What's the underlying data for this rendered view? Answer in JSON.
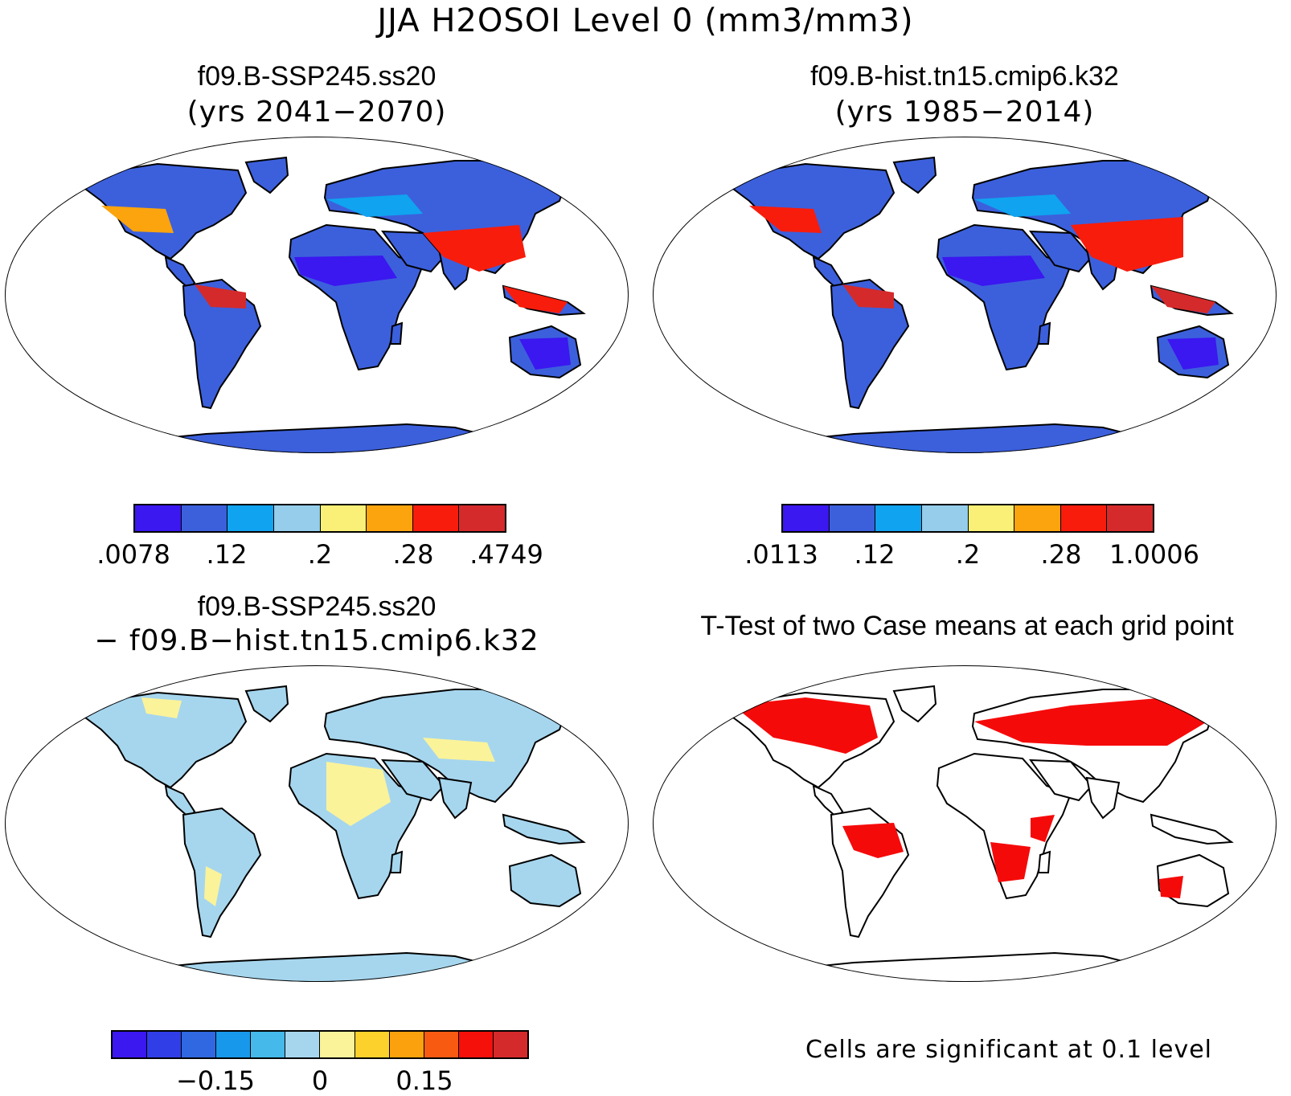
{
  "title": "JJA H2OSOI Level 0 (mm3/mm3)",
  "panels": {
    "a": {
      "case": "f09.B-SSP245.ss20",
      "years": "(yrs 2041−2070)"
    },
    "b": {
      "case": "f09.B-hist.tn15.cmip6.k32",
      "years": "(yrs 1985−2014)"
    },
    "c": {
      "case": "f09.B-SSP245.ss20",
      "minus": "− f09.B−hist.tn15.cmip6.k32"
    },
    "d": {
      "title": "T-Test of two Case means at each grid point",
      "note": "Cells are significant at 0.1 level"
    }
  },
  "colorbars": {
    "a": {
      "colors": [
        "#3b17f0",
        "#3c60dc",
        "#10a3f0",
        "#95cdea",
        "#faf077",
        "#fba40d",
        "#f81c0c",
        "#d42a2b"
      ],
      "labels": [
        ".0078",
        ".12",
        ".2",
        ".28",
        ".4749"
      ]
    },
    "b": {
      "colors": [
        "#3b17f0",
        "#3c60dc",
        "#10a3f0",
        "#95cdea",
        "#faf077",
        "#fba40d",
        "#f81c0c",
        "#d42a2b"
      ],
      "labels": [
        ".0113",
        ".12",
        ".2",
        ".28",
        "1.0006"
      ]
    },
    "c": {
      "colors": [
        "#3b17f0",
        "#2f3ee6",
        "#2f68e0",
        "#1898ea",
        "#44b9ea",
        "#a6d6ee",
        "#fbf39a",
        "#fdd12c",
        "#fba10d",
        "#f85a12",
        "#f5100a",
        "#d52a2b"
      ],
      "labels": [
        "−0.15",
        "0",
        "0.15"
      ]
    }
  },
  "map_colors": {
    "outline": "#000000",
    "significant": "#f50a0a"
  }
}
